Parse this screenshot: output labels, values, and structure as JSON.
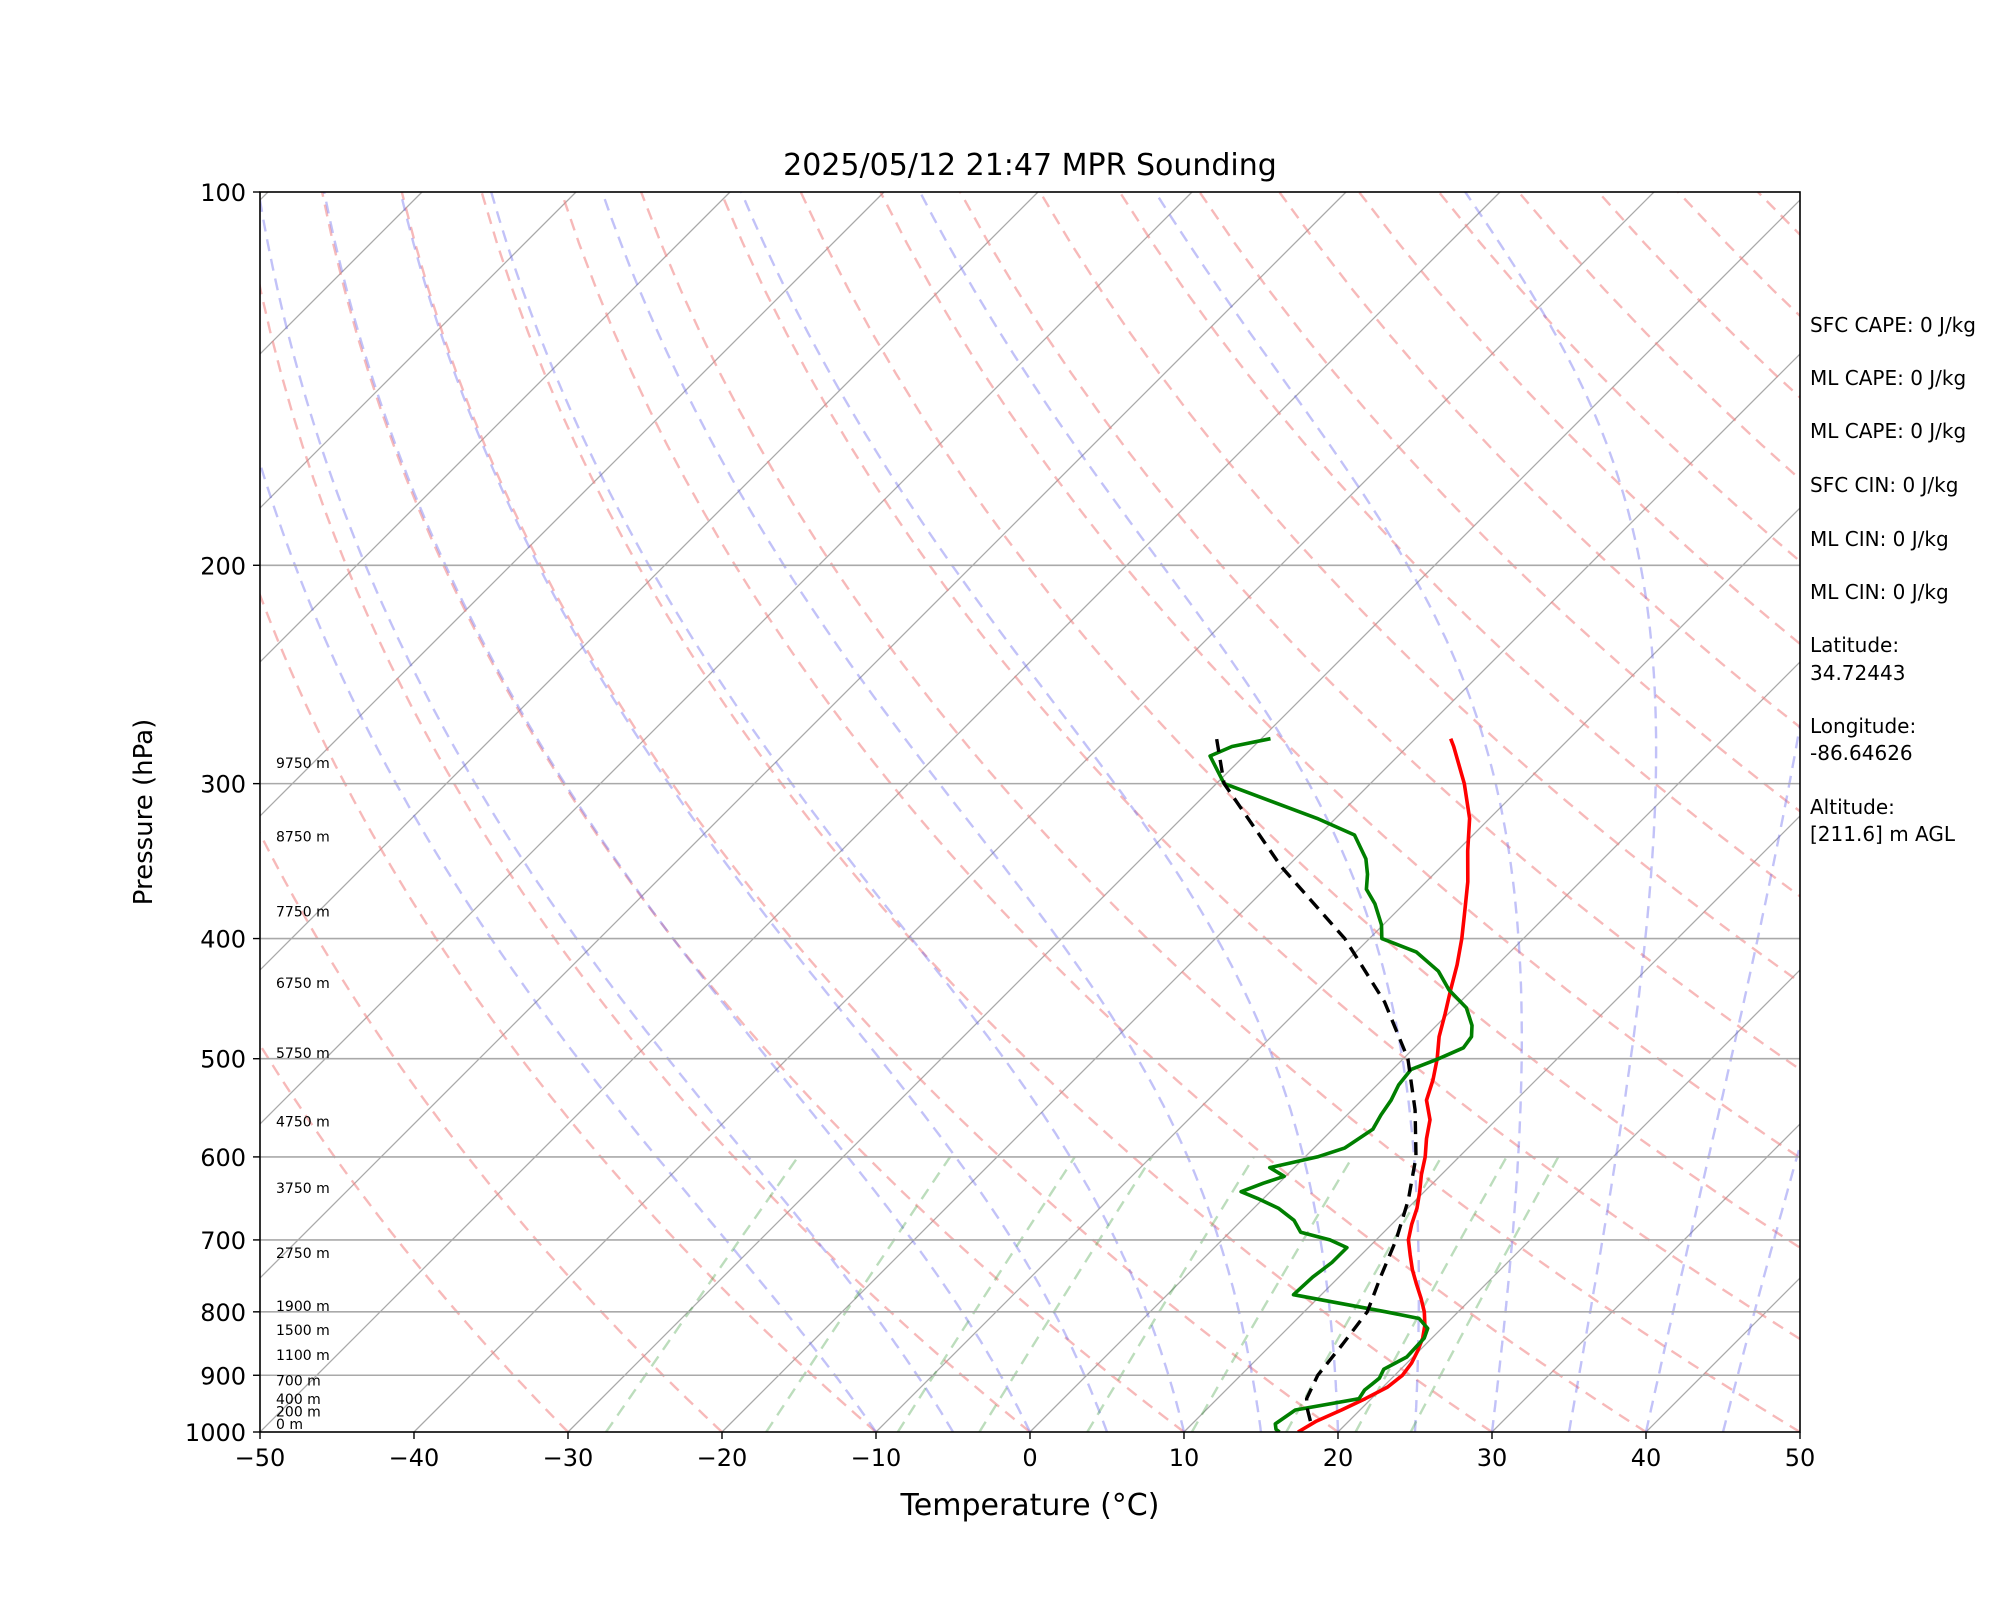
{
  "chart_data": {
    "type": "line",
    "chart_kind": "skew-T log-P sounding",
    "title": "2025/05/12 21:47 MPR Sounding",
    "xlabel": "Temperature (°C)",
    "ylabel": "Pressure (hPa)",
    "xlim": [
      -50,
      50
    ],
    "ylim": [
      1000,
      100
    ],
    "y_scale": "log",
    "x_ticks": [
      "−50",
      "−40",
      "−30",
      "−20",
      "−10",
      "0",
      "10",
      "20",
      "30",
      "40",
      "50"
    ],
    "y_ticks": [
      "100",
      "200",
      "300",
      "400",
      "500",
      "600",
      "700",
      "800",
      "900",
      "1000"
    ],
    "grid": "horizontal isobars and skewed isotherms",
    "background_lines": {
      "isotherm_color": "#a9a9a9",
      "dry_adiabat_color": "#f08080",
      "moist_adiabat_color": "#6666ee",
      "mixing_ratio_color": "#3f9f3f"
    },
    "height_labels": [
      {
        "label": "0 m",
        "p": 1000
      },
      {
        "label": "200 m",
        "p": 977
      },
      {
        "label": "400 m",
        "p": 955
      },
      {
        "label": "700 m",
        "p": 922
      },
      {
        "label": "1100 m",
        "p": 880
      },
      {
        "label": "1500 m",
        "p": 840
      },
      {
        "label": "1900 m",
        "p": 803
      },
      {
        "label": "2750 m",
        "p": 728
      },
      {
        "label": "3750 m",
        "p": 645
      },
      {
        "label": "4750 m",
        "p": 570
      },
      {
        "label": "5750 m",
        "p": 502
      },
      {
        "label": "6750 m",
        "p": 441
      },
      {
        "label": "7750 m",
        "p": 386
      },
      {
        "label": "8750 m",
        "p": 336
      },
      {
        "label": "9750 m",
        "p": 293
      }
    ],
    "series": [
      {
        "role": "temperature",
        "color": "#ff0000",
        "points": [
          [
            1000,
            17.4
          ],
          [
            980,
            17.9
          ],
          [
            960,
            18.8
          ],
          [
            940,
            19.6
          ],
          [
            920,
            20.3
          ],
          [
            900,
            20.5
          ],
          [
            880,
            20.3
          ],
          [
            860,
            19.9
          ],
          [
            840,
            19.4
          ],
          [
            820,
            18.7
          ],
          [
            800,
            17.8
          ],
          [
            780,
            16.7
          ],
          [
            760,
            15.5
          ],
          [
            740,
            14.3
          ],
          [
            720,
            13.2
          ],
          [
            700,
            12.1
          ],
          [
            680,
            11.3
          ],
          [
            660,
            10.6
          ],
          [
            640,
            9.7
          ],
          [
            620,
            8.7
          ],
          [
            600,
            7.8
          ],
          [
            580,
            6.7
          ],
          [
            560,
            5.7
          ],
          [
            540,
            4.2
          ],
          [
            520,
            3.3
          ],
          [
            500,
            2.2
          ],
          [
            480,
            0.9
          ],
          [
            460,
            -0.2
          ],
          [
            440,
            -1.4
          ],
          [
            420,
            -2.6
          ],
          [
            400,
            -4.0
          ],
          [
            380,
            -5.6
          ],
          [
            360,
            -7.3
          ],
          [
            340,
            -9.3
          ],
          [
            320,
            -11.3
          ],
          [
            300,
            -13.9
          ],
          [
            280,
            -17.0
          ],
          [
            276,
            -17.7
          ]
        ]
      },
      {
        "role": "dewpoint",
        "color": "#007f00",
        "points": [
          [
            1000,
            16.2
          ],
          [
            995,
            15.8
          ],
          [
            985,
            15.4
          ],
          [
            960,
            15.8
          ],
          [
            940,
            19.2
          ],
          [
            925,
            19.0
          ],
          [
            915,
            19.1
          ],
          [
            905,
            19.2
          ],
          [
            890,
            18.9
          ],
          [
            870,
            19.6
          ],
          [
            840,
            19.5
          ],
          [
            825,
            19.1
          ],
          [
            810,
            17.9
          ],
          [
            800,
            15.3
          ],
          [
            775,
            8.2
          ],
          [
            750,
            8.3
          ],
          [
            730,
            8.6
          ],
          [
            710,
            8.6
          ],
          [
            700,
            7.0
          ],
          [
            690,
            4.6
          ],
          [
            675,
            3.4
          ],
          [
            660,
            1.6
          ],
          [
            648,
            -0.4
          ],
          [
            640,
            -1.9
          ],
          [
            630,
            -1.0
          ],
          [
            622,
            -0.1
          ],
          [
            612,
            -1.6
          ],
          [
            600,
            0.8
          ],
          [
            590,
            2.0
          ],
          [
            570,
            2.6
          ],
          [
            555,
            2.2
          ],
          [
            540,
            1.9
          ],
          [
            525,
            1.4
          ],
          [
            510,
            1.2
          ],
          [
            500,
            2.3
          ],
          [
            490,
            3.2
          ],
          [
            480,
            3.0
          ],
          [
            470,
            2.3
          ],
          [
            455,
            0.8
          ],
          [
            440,
            -1.5
          ],
          [
            425,
            -3.4
          ],
          [
            410,
            -6.1
          ],
          [
            400,
            -9.2
          ],
          [
            390,
            -10.1
          ],
          [
            375,
            -11.9
          ],
          [
            365,
            -13.4
          ],
          [
            355,
            -14.3
          ],
          [
            345,
            -15.4
          ],
          [
            330,
            -17.7
          ],
          [
            320,
            -21.2
          ],
          [
            300,
            -29.5
          ],
          [
            285,
            -32.2
          ],
          [
            280,
            -31.4
          ],
          [
            276,
            -29.4
          ]
        ]
      },
      {
        "role": "parcel",
        "color": "#000000",
        "style": "dashed",
        "points": [
          [
            980,
            17.5
          ],
          [
            960,
            16.6
          ],
          [
            940,
            15.8
          ],
          [
            900,
            15.0
          ],
          [
            850,
            14.6
          ],
          [
            800,
            14.1
          ],
          [
            750,
            12.7
          ],
          [
            700,
            11.3
          ],
          [
            650,
            9.5
          ],
          [
            600,
            7.2
          ],
          [
            550,
            4.1
          ],
          [
            500,
            0.3
          ],
          [
            450,
            -4.9
          ],
          [
            400,
            -11.6
          ],
          [
            350,
            -20.4
          ],
          [
            300,
            -29.5
          ],
          [
            276,
            -32.9
          ]
        ]
      }
    ],
    "stats": [
      "SFC CAPE: 0 J/kg",
      "ML CAPE: 0 J/kg",
      "ML CAPE: 0 J/kg",
      "SFC CIN: 0 J/kg",
      "ML CIN: 0 J/kg",
      "ML CIN: 0 J/kg",
      "Latitude:",
      "34.72443",
      "Longitude:",
      "-86.64626",
      "Altitude:",
      "[211.6] m AGL"
    ]
  }
}
